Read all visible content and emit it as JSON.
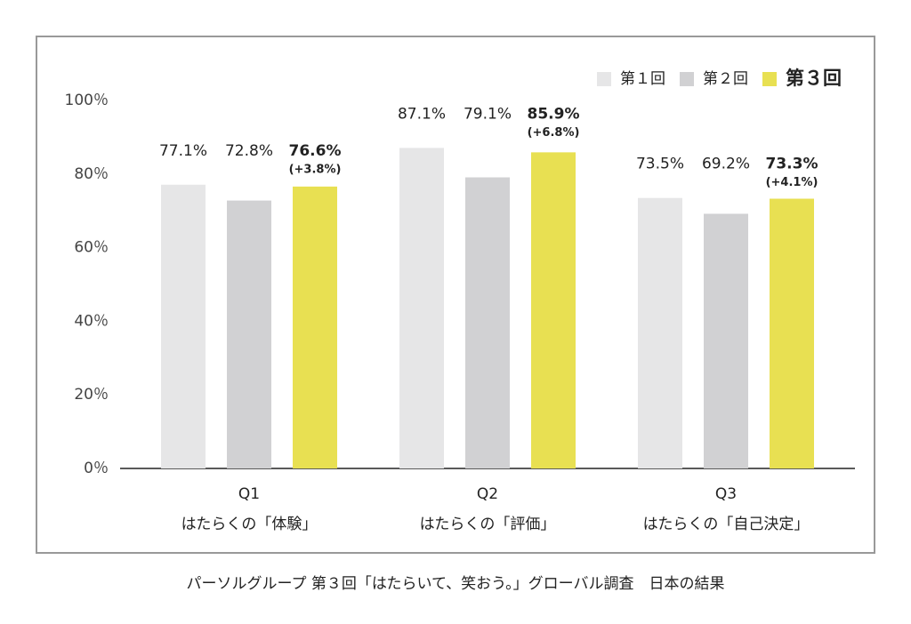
{
  "chart_data": {
    "type": "bar",
    "categories": [
      "Q1",
      "Q2",
      "Q3"
    ],
    "category_labels": [
      "はたらくの「体験」",
      "はたらくの「評価」",
      "はたらくの「自己決定」"
    ],
    "series": [
      {
        "name": "第１回",
        "color": "#e6e6e7",
        "values": [
          77.1,
          87.1,
          73.5
        ],
        "value_labels": [
          "77.1%",
          "87.1%",
          "73.5%"
        ]
      },
      {
        "name": "第２回",
        "color": "#d1d1d3",
        "values": [
          72.8,
          79.1,
          69.2
        ],
        "value_labels": [
          "72.8%",
          "79.1%",
          "69.2%"
        ]
      },
      {
        "name": "第３回",
        "color": "#e8e052",
        "values": [
          76.6,
          85.9,
          73.3
        ],
        "value_labels": [
          "76.6%",
          "85.9%",
          "73.3%"
        ],
        "change_labels": [
          "(+3.8%)",
          "(+6.8%)",
          "(+4.1%)"
        ]
      }
    ],
    "ylim": [
      0,
      100
    ],
    "yticks": [
      {
        "value": 0,
        "label": "0％"
      },
      {
        "value": 20,
        "label": "20％"
      },
      {
        "value": 40,
        "label": "40％"
      },
      {
        "value": 60,
        "label": "60％"
      },
      {
        "value": 80,
        "label": "80％"
      },
      {
        "value": 100,
        "label": "100％"
      }
    ],
    "legend": "top-right",
    "caption": "パーソルグループ  第３回「はたらいて、笑おう。」グローバル調査　日本の結果"
  }
}
